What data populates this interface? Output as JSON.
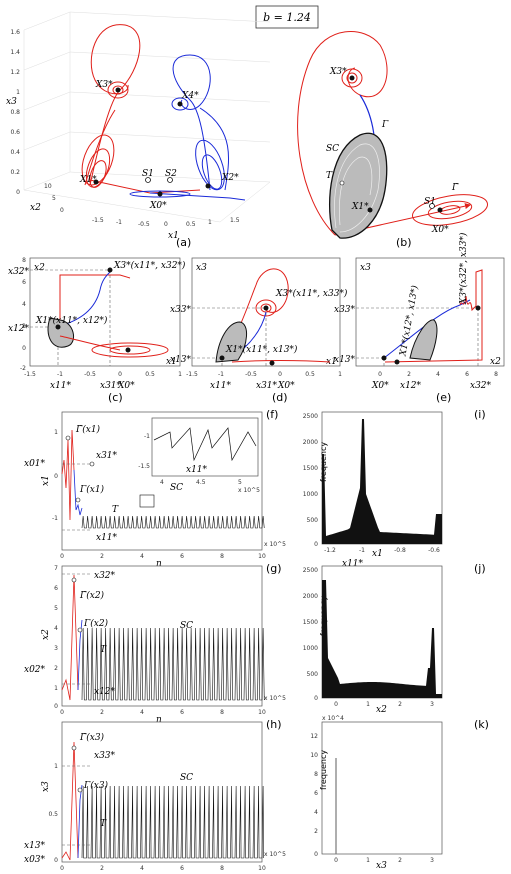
{
  "param_label": "b = 1.24",
  "panels": {
    "a": "(a)",
    "b": "(b)",
    "c": "(c)",
    "d": "(d)",
    "e": "(e)",
    "f": "(f)",
    "g": "(g)",
    "h": "(h)",
    "i": "(i)",
    "j": "(j)",
    "k": "(k)"
  },
  "axes": {
    "x1": "x1",
    "x2": "x2",
    "x3": "x3",
    "n": "n",
    "frequency": "frequency"
  },
  "labels": {
    "X1": "X1*",
    "X2": "X2*",
    "X3": "X3*",
    "X4": "X4*",
    "X0": "X0*",
    "S1": "S1",
    "S2": "S2",
    "SC": "SC",
    "T": "T",
    "Gamma": "Γ",
    "Gamma_tilde": "Γ̃",
    "x11": "x11*",
    "x12": "x12*",
    "x13": "x13*",
    "x31": "x31*",
    "x32": "x32*",
    "x33": "x33*",
    "x01": "x01*",
    "x02": "x02*",
    "x03": "x03*",
    "c_X3pt": "X3*(x11*, x32*)",
    "c_X1pt": "X1*(x11*, x12*)",
    "d_X3pt": "X3*(x11*, x33*)",
    "d_X1pt": "X1*(x11*, x13*)",
    "e_X3pt": "X3*(x32*, x33*)",
    "e_X1pt": "X1*(x12*, x13*)",
    "f_gt": "Γ̃(x1)",
    "f_g": "Γ(x1)",
    "g_gt": "Γ̃(x2)",
    "g_g": "Γ(x2)",
    "h_gt": "Γ̃(x3)",
    "h_g": "Γ(x3)",
    "x10_5": "x 10^5",
    "x10_4": "x 10^4"
  },
  "ticks": {
    "a_z": [
      "1.6",
      "1.4",
      "1.2",
      "1",
      "0.8",
      "0.6",
      "0.4",
      "0.2",
      "0"
    ],
    "a_x1": [
      "-1.5",
      "-1",
      "-0.5",
      "0",
      "0.5",
      "1",
      "1.5"
    ],
    "a_x2": [
      "10",
      "5",
      "0"
    ],
    "c_y": [
      "8",
      "6",
      "4",
      "2",
      "0",
      "-2"
    ],
    "c_x": [
      "-1.5",
      "-1",
      "-0.5",
      "0",
      "0.5",
      "1"
    ],
    "d_x": [
      "-1.5",
      "-1",
      "-0.5",
      "0",
      "0.5",
      "1"
    ],
    "e_x": [
      "0",
      "2",
      "4",
      "6",
      "8"
    ],
    "f_y": [
      "1",
      "0",
      "-1"
    ],
    "n": [
      "0",
      "2",
      "4",
      "6",
      "8",
      "10"
    ],
    "inset_y": [
      "-1",
      "-1.5"
    ],
    "inset_x": [
      "4",
      "4.5",
      "5"
    ],
    "g_y": [
      "7",
      "6",
      "5",
      "4",
      "3",
      "2",
      "1",
      "0"
    ],
    "h_y": [
      "1",
      "0.5",
      "0"
    ],
    "i_y": [
      "2500",
      "2000",
      "1500",
      "1000",
      "500",
      "0"
    ],
    "i_x": [
      "-1.2",
      "-1",
      "-0.8",
      "-0.6"
    ],
    "j_y": [
      "2500",
      "2000",
      "1500",
      "1000",
      "500",
      "0"
    ],
    "j_x": [
      "0",
      "1",
      "2",
      "3"
    ],
    "k_y": [
      "12",
      "10",
      "8",
      "6",
      "4",
      "2",
      "0"
    ],
    "k_x": [
      "0",
      "1",
      "2",
      "3"
    ]
  },
  "colors": {
    "red": "#e0201a",
    "blue": "#1a2ad8",
    "gray": "#9a9a9a",
    "black": "#111111"
  }
}
